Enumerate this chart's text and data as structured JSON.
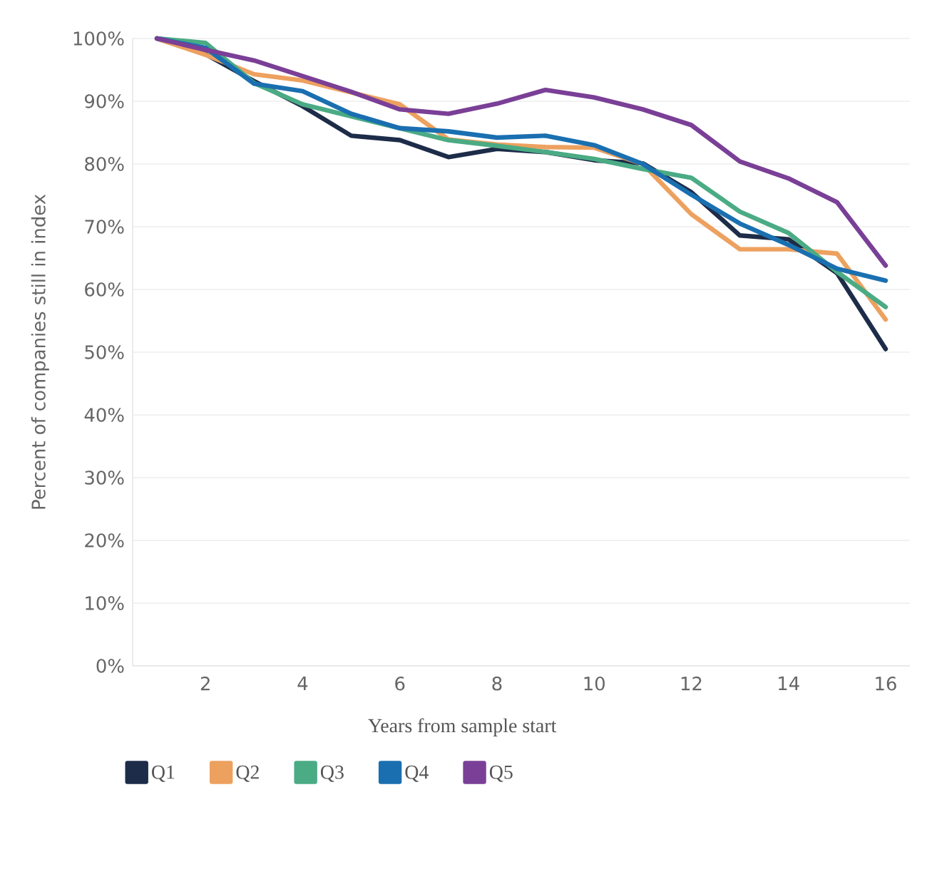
{
  "chart_data": {
    "type": "line",
    "xlabel": "Years from sample start",
    "ylabel": "Percent of companies still in index",
    "x": [
      1,
      2,
      3,
      4,
      5,
      6,
      7,
      8,
      9,
      10,
      11,
      12,
      13,
      14,
      15,
      16
    ],
    "series": [
      {
        "name": "Q1",
        "color": "#1d2c48",
        "values": [
          100,
          97.5,
          93.2,
          89.2,
          84.5,
          83.8,
          81.1,
          82.4,
          81.9,
          80.6,
          80.1,
          75.5,
          68.6,
          68.0,
          62.6,
          50.5
        ]
      },
      {
        "name": "Q2",
        "color": "#eda15f",
        "values": [
          100,
          97.4,
          94.3,
          93.3,
          91.4,
          89.5,
          83.9,
          83.1,
          82.7,
          82.6,
          80.0,
          72.0,
          66.4,
          66.4,
          65.7,
          55.2
        ]
      },
      {
        "name": "Q3",
        "color": "#4aab84",
        "values": [
          100,
          99.3,
          92.9,
          89.5,
          87.6,
          85.7,
          83.8,
          82.9,
          81.9,
          80.8,
          79.2,
          77.8,
          72.4,
          69.0,
          62.8,
          57.2
        ]
      },
      {
        "name": "Q4",
        "color": "#1a6fb0",
        "values": [
          100,
          98.5,
          92.8,
          91.6,
          88.0,
          85.7,
          85.2,
          84.2,
          84.5,
          83.0,
          80.0,
          75.1,
          70.5,
          67.1,
          63.3,
          61.4
        ]
      },
      {
        "name": "Q5",
        "color": "#7a3f96",
        "values": [
          100,
          98.2,
          96.5,
          94.0,
          91.5,
          88.7,
          88.0,
          89.6,
          91.8,
          90.6,
          88.7,
          86.2,
          80.4,
          77.7,
          73.9,
          63.8
        ]
      }
    ],
    "xlim": [
      0.5,
      16.5
    ],
    "ylim": [
      0,
      100
    ],
    "xticks": [
      2,
      4,
      6,
      8,
      10,
      12,
      14,
      16
    ],
    "yticks": [
      {
        "value": 0,
        "label": "0%"
      },
      {
        "value": 10,
        "label": "10%"
      },
      {
        "value": 20,
        "label": "20%"
      },
      {
        "value": 30,
        "label": "30%"
      },
      {
        "value": 40,
        "label": "40%"
      },
      {
        "value": 50,
        "label": "50%"
      },
      {
        "value": 60,
        "label": "60%"
      },
      {
        "value": 70,
        "label": "70%"
      },
      {
        "value": 80,
        "label": "80%"
      },
      {
        "value": 90,
        "label": "90%"
      },
      {
        "value": 100,
        "label": "100%"
      }
    ],
    "grid": "y",
    "legend": "bottom"
  }
}
